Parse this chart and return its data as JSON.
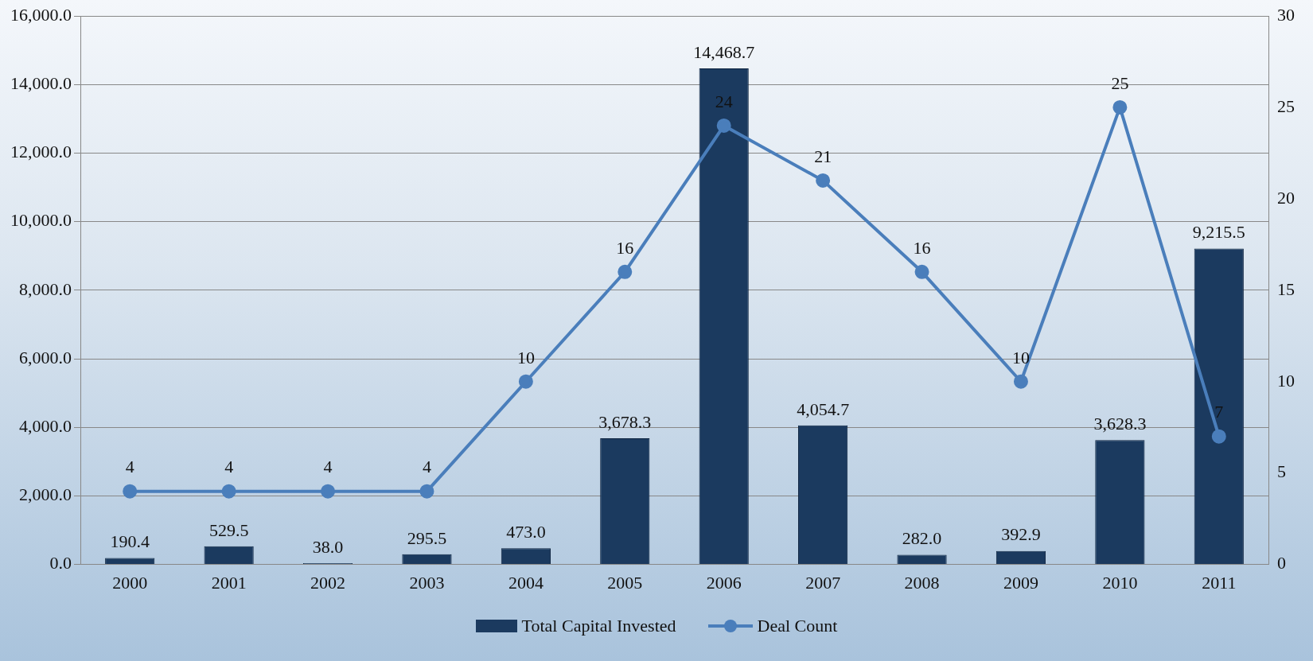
{
  "chart_data": {
    "type": "bar",
    "categories": [
      "2000",
      "2001",
      "2002",
      "2003",
      "2004",
      "2005",
      "2006",
      "2007",
      "2008",
      "2009",
      "2010",
      "2011"
    ],
    "series": [
      {
        "name": "Total Capital Invested",
        "color": "#1b3a5f",
        "values": [
          190.4,
          529.5,
          38.0,
          295.5,
          473.0,
          3678.3,
          14468.7,
          4054.7,
          282.0,
          392.9,
          3628.3,
          9215.5
        ],
        "value_labels": [
          "190.4",
          "529.5",
          "38.0",
          "295.5",
          "473.0",
          "3,678.3",
          "14,468.7",
          "4,054.7",
          "282.0",
          "392.9",
          "3,628.3",
          "9,215.5"
        ]
      },
      {
        "name": "Deal Count",
        "type": "line",
        "axis": "y2",
        "color": "#4a7ebb",
        "values": [
          4,
          4,
          4,
          4,
          10,
          16,
          24,
          21,
          16,
          10,
          25,
          7
        ],
        "value_labels": [
          "4",
          "4",
          "4",
          "4",
          "10",
          "16",
          "24",
          "21",
          "16",
          "10",
          "25",
          "7"
        ]
      }
    ],
    "ylim": [
      0,
      16000
    ],
    "yticks": [
      {
        "value": 0,
        "label": "0.0"
      },
      {
        "value": 2000,
        "label": "2,000.0"
      },
      {
        "value": 4000,
        "label": "4,000.0"
      },
      {
        "value": 6000,
        "label": "6,000.0"
      },
      {
        "value": 8000,
        "label": "8,000.0"
      },
      {
        "value": 10000,
        "label": "10,000.0"
      },
      {
        "value": 12000,
        "label": "12,000.0"
      },
      {
        "value": 14000,
        "label": "14,000.0"
      },
      {
        "value": 16000,
        "label": "16,000.0"
      }
    ],
    "y2lim": [
      0,
      30
    ],
    "y2ticks": [
      0,
      5,
      10,
      15,
      20,
      25,
      30
    ],
    "grid": "y",
    "legend": "bottom",
    "marker": "circle",
    "line_style": "solid"
  }
}
